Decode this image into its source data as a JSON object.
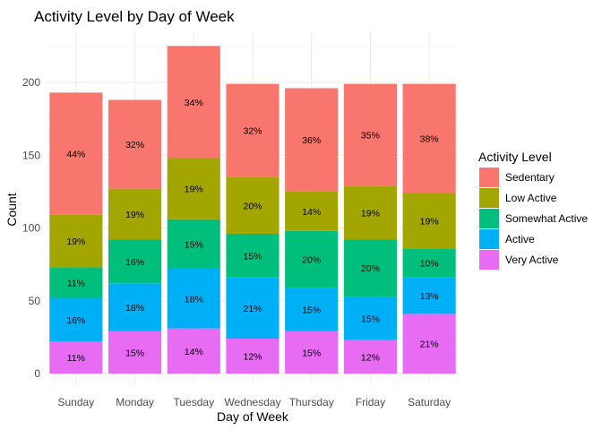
{
  "chart_data": {
    "type": "bar",
    "stacked": true,
    "title": "Activity Level by Day of Week",
    "xlabel": "Day of Week",
    "ylabel": "Count",
    "ylim": [
      0,
      232
    ],
    "yticks": [
      0,
      50,
      100,
      150,
      200
    ],
    "grid": true,
    "legend_position": "right",
    "legend_title": "Activity Level",
    "categories": [
      "Sunday",
      "Monday",
      "Tuesday",
      "Wednesday",
      "Thursday",
      "Friday",
      "Saturday"
    ],
    "series": [
      {
        "name": "Very Active",
        "color": "#E76BF3",
        "values": [
          22,
          29,
          31,
          24,
          29,
          23,
          41
        ],
        "labels": [
          "11%",
          "15%",
          "14%",
          "12%",
          "15%",
          "12%",
          "21%"
        ]
      },
      {
        "name": "Active",
        "color": "#00B0F6",
        "values": [
          30,
          33,
          41,
          42,
          30,
          30,
          25
        ],
        "labels": [
          "16%",
          "18%",
          "18%",
          "21%",
          "15%",
          "15%",
          "13%"
        ]
      },
      {
        "name": "Somewhat Active",
        "color": "#00BF7D",
        "values": [
          21,
          30,
          34,
          30,
          39,
          39,
          20
        ],
        "labels": [
          "11%",
          "16%",
          "15%",
          "15%",
          "20%",
          "20%",
          "10%"
        ]
      },
      {
        "name": "Low Active",
        "color": "#A3A500",
        "values": [
          36,
          35,
          42,
          39,
          27,
          37,
          38
        ],
        "labels": [
          "19%",
          "19%",
          "19%",
          "20%",
          "14%",
          "19%",
          "19%"
        ]
      },
      {
        "name": "Sedentary",
        "color": "#F8766D",
        "values": [
          84,
          61,
          77,
          64,
          71,
          70,
          75
        ],
        "labels": [
          "44%",
          "32%",
          "34%",
          "32%",
          "36%",
          "35%",
          "38%"
        ]
      }
    ],
    "legend_order": [
      "Sedentary",
      "Low Active",
      "Somewhat Active",
      "Active",
      "Very Active"
    ]
  }
}
